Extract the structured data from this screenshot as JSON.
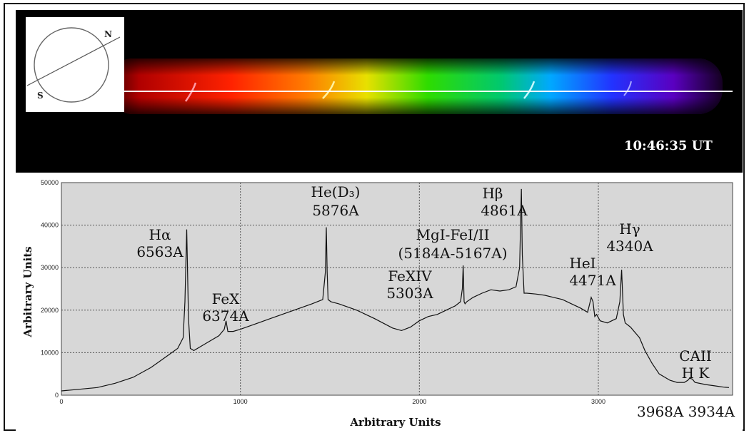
{
  "spectrum_image": {
    "timestamp": "10:46:35 UT",
    "orientation": {
      "north": "N",
      "south": "S"
    }
  },
  "chart_data": {
    "type": "line",
    "xlabel": "Arbitrary Units",
    "ylabel": "Arbitrary Units",
    "xlim": [
      0,
      3750
    ],
    "ylim": [
      0,
      50000
    ],
    "xticks": [
      0,
      1000,
      2000,
      3000
    ],
    "yticks": [
      0,
      10000,
      20000,
      30000,
      40000,
      50000
    ],
    "grid": true,
    "x": [
      0,
      100,
      200,
      300,
      400,
      500,
      600,
      650,
      680,
      690,
      700,
      710,
      720,
      740,
      800,
      880,
      910,
      920,
      930,
      960,
      1000,
      1100,
      1200,
      1300,
      1400,
      1460,
      1475,
      1480,
      1485,
      1490,
      1505,
      1550,
      1650,
      1750,
      1850,
      1900,
      1950,
      2000,
      2050,
      2100,
      2150,
      2200,
      2230,
      2240,
      2245,
      2250,
      2255,
      2265,
      2300,
      2350,
      2400,
      2450,
      2500,
      2540,
      2560,
      2570,
      2575,
      2585,
      2600,
      2650,
      2700,
      2750,
      2800,
      2850,
      2900,
      2940,
      2960,
      2970,
      2980,
      2990,
      3010,
      3050,
      3100,
      3120,
      3130,
      3140,
      3150,
      3180,
      3230,
      3260,
      3300,
      3340,
      3400,
      3440,
      3480,
      3500,
      3510,
      3525,
      3540,
      3600,
      3650,
      3700,
      3730
    ],
    "y": [
      1000,
      1400,
      1800,
      2800,
      4200,
      6500,
      9500,
      11000,
      13500,
      22000,
      39000,
      18000,
      11000,
      10500,
      12000,
      14000,
      15500,
      17500,
      15000,
      15000,
      15500,
      17000,
      18500,
      20000,
      21500,
      22500,
      29000,
      39500,
      29000,
      22500,
      22000,
      21500,
      20000,
      18000,
      15800,
      15200,
      16000,
      17500,
      18500,
      19000,
      20000,
      21000,
      22000,
      25000,
      30500,
      22000,
      21500,
      22000,
      23000,
      24000,
      24800,
      24500,
      24800,
      25500,
      30000,
      48500,
      33000,
      24000,
      24000,
      23800,
      23500,
      23000,
      22500,
      21500,
      20500,
      19500,
      23000,
      22000,
      18500,
      19000,
      17500,
      17000,
      18000,
      22000,
      29500,
      19000,
      17000,
      16000,
      13500,
      10500,
      7500,
      5000,
      3500,
      3000,
      3000,
      3500,
      4000,
      3800,
      3000,
      2500,
      2200,
      1900,
      1800
    ],
    "annotations": [
      {
        "lines": [
          "Hα",
          "6563A"
        ]
      },
      {
        "lines": [
          "FeX",
          "6374A"
        ]
      },
      {
        "lines": [
          "He(D₃)",
          "5876A"
        ]
      },
      {
        "lines": [
          "FeXIV",
          "5303A"
        ]
      },
      {
        "lines": [
          "MgI-FeI/II",
          "(5184A-5167A)"
        ]
      },
      {
        "lines": [
          "Hβ",
          "4861A"
        ]
      },
      {
        "lines": [
          "HeI",
          "4471A"
        ]
      },
      {
        "lines": [
          "Hγ",
          "4340A"
        ]
      },
      {
        "lines": [
          "CAII",
          "H K"
        ]
      },
      {
        "lines": [
          "3968A 3934A"
        ]
      }
    ]
  }
}
